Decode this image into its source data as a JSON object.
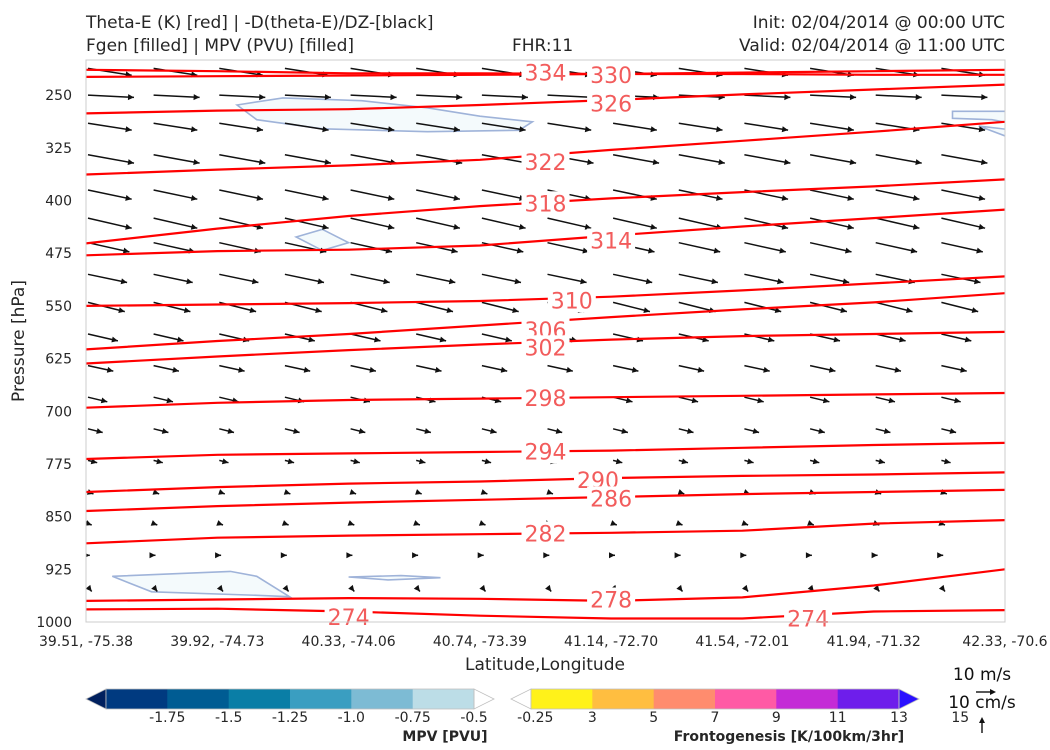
{
  "header": {
    "left_line1": "Theta-E (K) [red] | -D(theta-E)/DZ-[black]",
    "left_line2": "Fgen [filled] | MPV (PVU) [filled]",
    "center": "FHR:11",
    "right_line1": "Init: 02/04/2014 @ 00:00 UTC",
    "right_line2": "Valid: 02/04/2014 @ 11:00 UTC"
  },
  "colors": {
    "theta_e": "#ff0000",
    "theta_e_label": "#f25c5c",
    "vectors": "#111111",
    "mpv_outline": "#9fb3d9",
    "mpv_fill": "#f4fafc"
  },
  "chart_data": {
    "type": "contour",
    "xlabel": "Latitude,Longitude",
    "ylabel": "Pressure [hPa]",
    "x_ticks": [
      "39.51, -75.38",
      "39.92, -74.73",
      "40.33, -74.06",
      "40.74, -73.39",
      "41.14, -72.70",
      "41.54, -72.01",
      "41.94, -71.32",
      "42.33, -70.6"
    ],
    "y_ticks": [
      250,
      325,
      400,
      475,
      550,
      625,
      700,
      775,
      850,
      925,
      1000
    ],
    "ylim": [
      1000,
      200
    ],
    "theta_e_contours": [
      {
        "level": 274,
        "p": [
          982,
          981,
          985,
          991,
          995,
          995,
          985,
          983
        ]
      },
      {
        "level": 278,
        "p": [
          970,
          968,
          966,
          967,
          970,
          965,
          948,
          925
        ]
      },
      {
        "level": 282,
        "p": [
          888,
          880,
          877,
          875,
          873,
          870,
          860,
          855
        ]
      },
      {
        "level": 286,
        "p": [
          842,
          835,
          830,
          826,
          822,
          818,
          815,
          812
        ]
      },
      {
        "level": 290,
        "p": [
          815,
          808,
          803,
          800,
          795,
          792,
          790,
          787
        ]
      },
      {
        "level": 294,
        "p": [
          768,
          762,
          760,
          758,
          756,
          752,
          748,
          745
        ]
      },
      {
        "level": 298,
        "p": [
          695,
          688,
          684,
          682,
          680,
          678,
          676,
          674
        ]
      },
      {
        "level": 302,
        "p": [
          632,
          622,
          613,
          605,
          598,
          593,
          590,
          587
        ]
      },
      {
        "level": 306,
        "p": [
          612,
          600,
          590,
          578,
          566,
          555,
          545,
          532
        ]
      },
      {
        "level": 310,
        "p": [
          550,
          548,
          546,
          543,
          537,
          528,
          518,
          508
        ]
      },
      {
        "level": 314,
        "p": [
          478,
          472,
          470,
          464,
          450,
          437,
          425,
          413
        ]
      },
      {
        "level": 318,
        "p": [
          461,
          440,
          422,
          408,
          397,
          388,
          380,
          370
        ]
      },
      {
        "level": 322,
        "p": [
          363,
          356,
          350,
          342,
          328,
          315,
          302,
          288
        ]
      },
      {
        "level": 326,
        "p": [
          276,
          272,
          270,
          264,
          257,
          249,
          242,
          235
        ]
      },
      {
        "level": 330,
        "p": [
          224,
          223,
          222,
          221,
          220,
          218,
          216,
          214
        ]
      },
      {
        "level": 334,
        "p": [
          214,
          216,
          219,
          219,
          220,
          220,
          221,
          221
        ]
      }
    ],
    "labels": [
      {
        "text": "334",
        "x_index": 3.5,
        "p": 218
      },
      {
        "text": "330",
        "x_index": 4.0,
        "p": 221
      },
      {
        "text": "326",
        "x_index": 4.0,
        "p": 262
      },
      {
        "text": "322",
        "x_index": 3.5,
        "p": 345
      },
      {
        "text": "318",
        "x_index": 3.5,
        "p": 404
      },
      {
        "text": "314",
        "x_index": 4.0,
        "p": 457
      },
      {
        "text": "310",
        "x_index": 3.7,
        "p": 542
      },
      {
        "text": "306",
        "x_index": 3.5,
        "p": 584
      },
      {
        "text": "302",
        "x_index": 3.5,
        "p": 609
      },
      {
        "text": "298",
        "x_index": 3.5,
        "p": 681
      },
      {
        "text": "294",
        "x_index": 3.5,
        "p": 757
      },
      {
        "text": "290",
        "x_index": 3.9,
        "p": 798
      },
      {
        "text": "286",
        "x_index": 4.0,
        "p": 824
      },
      {
        "text": "282",
        "x_index": 3.5,
        "p": 874
      },
      {
        "text": "278",
        "x_index": 4.0,
        "p": 968
      },
      {
        "text": "274",
        "x_index": 2.0,
        "p": 993
      },
      {
        "text": "274",
        "x_index": 5.5,
        "p": 995
      }
    ],
    "mpv_regions": [
      {
        "points": [
          [
            1.15,
            264
          ],
          [
            1.5,
            254
          ],
          [
            2.1,
            258
          ],
          [
            2.6,
            268
          ],
          [
            3.0,
            280
          ],
          [
            3.4,
            288
          ],
          [
            3.3,
            300
          ],
          [
            2.6,
            302
          ],
          [
            1.8,
            298
          ],
          [
            1.3,
            285
          ]
        ]
      },
      {
        "points": [
          [
            1.6,
            452
          ],
          [
            1.8,
            441
          ],
          [
            2.0,
            460
          ],
          [
            1.8,
            471
          ]
        ]
      },
      {
        "points": [
          [
            6.6,
            273
          ],
          [
            7.0,
            273
          ],
          [
            7.4,
            278
          ],
          [
            7.6,
            290
          ],
          [
            7.2,
            295
          ],
          [
            6.9,
            285
          ],
          [
            6.6,
            283
          ]
        ]
      },
      {
        "points": [
          [
            6.8,
            294
          ],
          [
            7.3,
            305
          ],
          [
            7.0,
            308
          ]
        ]
      },
      {
        "points": [
          [
            7.75,
            382
          ],
          [
            8.0,
            362
          ],
          [
            8.0,
            402
          ],
          [
            7.8,
            397
          ]
        ]
      },
      {
        "points": [
          [
            0.2,
            935
          ],
          [
            1.1,
            928
          ],
          [
            1.3,
            935
          ],
          [
            1.55,
            964
          ],
          [
            1.3,
            962
          ],
          [
            0.5,
            957
          ]
        ]
      },
      {
        "points": [
          [
            2.0,
            936
          ],
          [
            2.4,
            934
          ],
          [
            2.7,
            937
          ],
          [
            2.3,
            940
          ]
        ]
      },
      {
        "points": [
          [
            7.6,
            965
          ],
          [
            7.8,
            935
          ],
          [
            8.0,
            932
          ],
          [
            8.0,
            1000
          ],
          [
            7.8,
            997
          ],
          [
            7.6,
            980
          ]
        ]
      }
    ],
    "vector_rows": [
      {
        "p": 212,
        "u": 0.95,
        "v": -0.15
      },
      {
        "p": 250,
        "u": 1.0,
        "v": -0.05
      },
      {
        "p": 290,
        "u": 0.95,
        "v": -0.15
      },
      {
        "p": 335,
        "u": 1.0,
        "v": -0.18
      },
      {
        "p": 385,
        "u": 0.95,
        "v": -0.2
      },
      {
        "p": 425,
        "u": 0.95,
        "v": -0.22
      },
      {
        "p": 460,
        "u": 0.9,
        "v": -0.2
      },
      {
        "p": 505,
        "u": 0.85,
        "v": -0.18
      },
      {
        "p": 545,
        "u": 0.8,
        "v": -0.2
      },
      {
        "p": 590,
        "u": 0.65,
        "v": -0.15
      },
      {
        "p": 635,
        "u": 0.55,
        "v": -0.12
      },
      {
        "p": 680,
        "u": 0.42,
        "v": -0.1
      },
      {
        "p": 725,
        "u": 0.32,
        "v": -0.08
      },
      {
        "p": 770,
        "u": 0.2,
        "v": -0.05
      },
      {
        "p": 815,
        "u": 0.12,
        "v": -0.04
      },
      {
        "p": 860,
        "u": 0.08,
        "v": -0.03
      },
      {
        "p": 905,
        "u": 0.04,
        "v": 0
      },
      {
        "p": 950,
        "u": 0.08,
        "v": -0.1
      }
    ],
    "mpv_colorbar": {
      "title": "MPV [PVU]",
      "ticks": [
        "-1.75",
        "-1.5",
        "-1.25",
        "-1.0",
        "-0.75",
        "-0.5",
        "-0.25"
      ],
      "colors": [
        "#00205e",
        "#003a80",
        "#005c93",
        "#0a7ea6",
        "#3a9ec1",
        "#7dbbd4",
        "#bcdde7",
        "#ffffff"
      ]
    },
    "fgen_colorbar": {
      "title": "Frontogenesis [K/100km/3hr]",
      "ticks": [
        "3",
        "5",
        "7",
        "9",
        "11",
        "13",
        "15"
      ],
      "colors": [
        "#ffffff",
        "#fff21a",
        "#ffbe40",
        "#ff8c6e",
        "#ff5aa5",
        "#c42bd6",
        "#6e1eeb",
        "#2a10ff"
      ]
    },
    "vector_key": {
      "wind": "10 m/s",
      "vertical": "10 cm/s"
    }
  }
}
